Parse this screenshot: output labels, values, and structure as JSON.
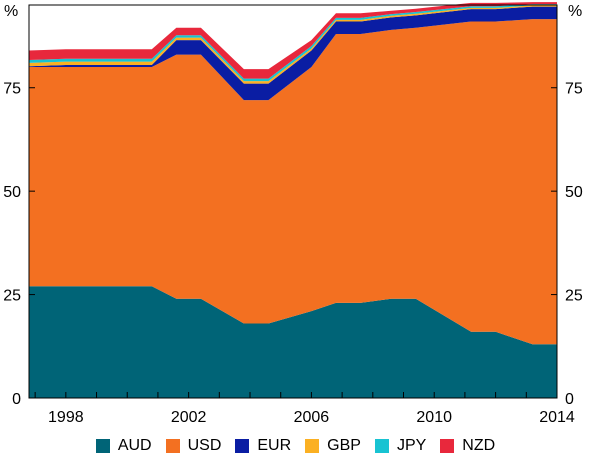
{
  "chart_data": {
    "type": "area",
    "stacked": true,
    "x": [
      1996.8,
      1998.0,
      2000.8,
      2001.6,
      2002.4,
      2003.8,
      2004.6,
      2006.0,
      2006.8,
      2007.6,
      2008.6,
      2009.4,
      2011.2,
      2012.0,
      2013.2,
      2014.0
    ],
    "series": [
      {
        "name": "AUD",
        "color": "#006477",
        "values": [
          27,
          27,
          27,
          24,
          24,
          18,
          18,
          21,
          23,
          23,
          24,
          24,
          16,
          16,
          13,
          13
        ]
      },
      {
        "name": "USD",
        "color": "#f37021",
        "values": [
          53,
          53,
          53,
          59,
          59,
          54,
          54,
          59,
          65,
          65,
          65,
          65.5,
          75,
          75,
          78.6,
          78.6
        ]
      },
      {
        "name": "EUR",
        "color": "#0a1da3",
        "values": [
          0.2,
          0.5,
          0.5,
          3.5,
          3.5,
          4,
          4,
          4,
          3,
          3,
          3,
          3,
          3,
          3,
          3,
          3
        ]
      },
      {
        "name": "GBP",
        "color": "#fbb022",
        "values": [
          0.8,
          0.8,
          0.8,
          0.6,
          0.6,
          0.6,
          0.6,
          0.5,
          0.4,
          0.4,
          0.4,
          0.4,
          0.3,
          0.3,
          0.3,
          0.3
        ]
      },
      {
        "name": "JPY",
        "color": "#18c3d2",
        "values": [
          0.7,
          0.7,
          0.7,
          0.6,
          0.6,
          0.6,
          0.6,
          0.6,
          0.5,
          0.5,
          0.4,
          0.4,
          0.4,
          0.4,
          0.3,
          0.3
        ]
      },
      {
        "name": "NZD",
        "color": "#e8283c",
        "values": [
          2.3,
          2.3,
          2.3,
          1.8,
          1.8,
          2.3,
          2.3,
          1.4,
          1.1,
          1.1,
          0.8,
          0.8,
          0.8,
          0.8,
          0.5,
          0.5
        ]
      }
    ],
    "xticks": [
      1998,
      2002,
      2006,
      2010,
      2014
    ],
    "xlim": [
      1996.8,
      2014.0
    ],
    "yticks": [
      0,
      25,
      50,
      75
    ],
    "ylim": [
      0,
      95
    ],
    "ylabel_left": "%",
    "ylabel_right": "%",
    "grid": false,
    "legend_placement": "bottom"
  }
}
